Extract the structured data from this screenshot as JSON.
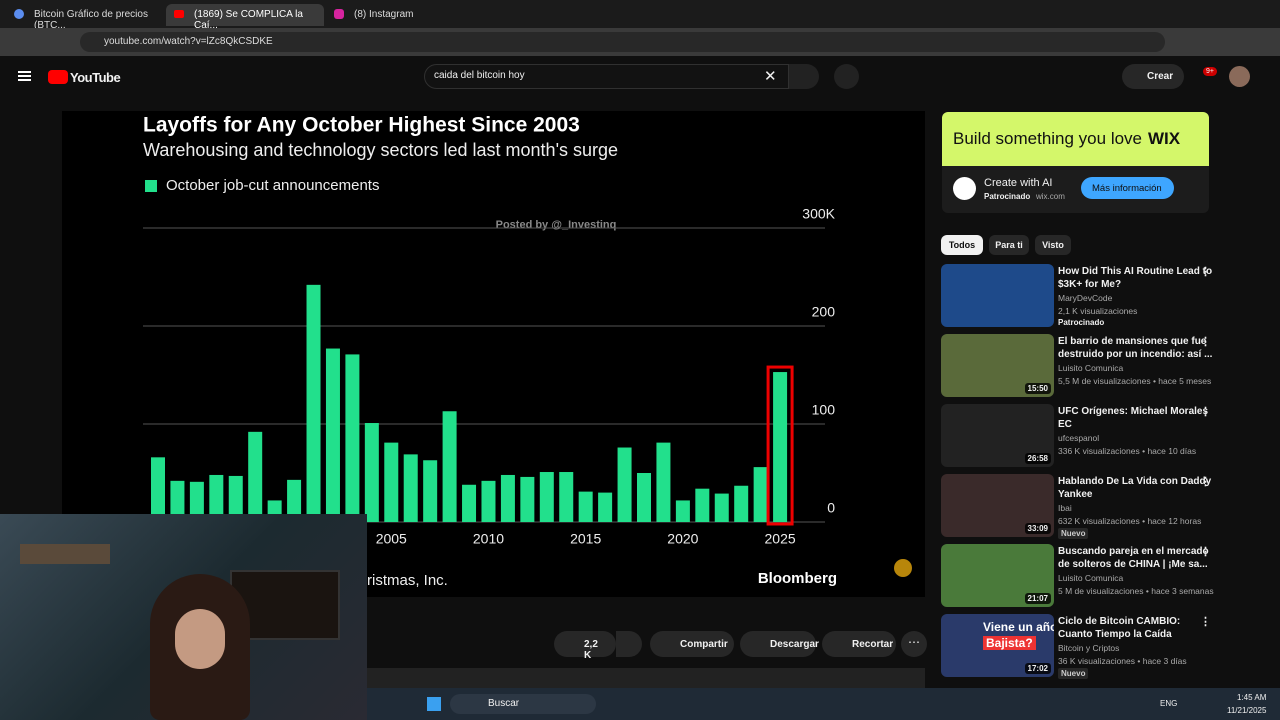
{
  "browser": {
    "tabs": [
      "Bitcoin Gráfico de precios (BTC...",
      "(1869) Se COMPLICA la Caí...",
      "(8) Instagram"
    ],
    "url": "youtube.com/watch?v=lZc8QkCSDKE"
  },
  "header": {
    "logo": "YouTube",
    "search": "caida del bitcoin hoy",
    "create": "Crear",
    "notifications": "9+"
  },
  "video": {
    "chart_data": {
      "type": "bar",
      "title": "Layoffs for Any October Highest Since 2003",
      "subtitle": "Warehousing and technology sectors led last month's surge",
      "categories": [
        null,
        null,
        null,
        null,
        null,
        null,
        null,
        null,
        null,
        null,
        null,
        null,
        "2005",
        null,
        null,
        null,
        null,
        "2010",
        null,
        null,
        null,
        null,
        "2015",
        null,
        null,
        null,
        null,
        "2020",
        null,
        null,
        null,
        null,
        "2025"
      ],
      "series": [
        {
          "name": "October job-cut announcements",
          "color": "#22e08c",
          "values": [
            66,
            42,
            41,
            48,
            47,
            92,
            22,
            43,
            242,
            177,
            171,
            101,
            81,
            69,
            63,
            113,
            38,
            42,
            48,
            46,
            51,
            51,
            31,
            30,
            76,
            50,
            81,
            22,
            34,
            29,
            37,
            56,
            153
          ]
        }
      ],
      "ylim": [
        0,
        300
      ],
      "yticks": [
        0,
        100,
        200,
        {
          "value": 300,
          "label": "300K"
        }
      ],
      "grid": true
    },
    "watermark": "Posted by @_Investinq",
    "source": "ristmas, Inc.",
    "brand": "Bloomberg"
  },
  "actions": {
    "likes": "2,2 K",
    "share": "Compartir",
    "download": "Descargar",
    "clip": "Recortar"
  },
  "ad": {
    "banner": "Build something you love",
    "banner_brand": "WIX",
    "title": "Create with AI",
    "sponsor": "Patrocinado",
    "domain": "wix.com",
    "button": "Más información"
  },
  "filters": [
    "Todos",
    "Para ti",
    "Visto"
  ],
  "videos": [
    {
      "title": [
        "How Did This AI Routine Lead to",
        "$3K+ for Me?"
      ],
      "channel": "MaryDevCode",
      "meta": "2,1 K visualizaciones",
      "badge": "Patrocinado"
    },
    {
      "title": [
        "El barrio de mansiones que fue",
        "destruido por un incendio: así ..."
      ],
      "channel": "Luisito Comunica",
      "meta": "5,5 M de visualizaciones • hace 5 meses",
      "duration": "15:50"
    },
    {
      "title": [
        "UFC Orígenes: Michael Morales",
        "EC"
      ],
      "channel": "ufcespanol",
      "meta": "336 K visualizaciones • hace 10 días",
      "duration": "26:58"
    },
    {
      "title": [
        "Hablando De La Vida con Daddy",
        "Yankee"
      ],
      "channel": "Ibai",
      "meta": "632 K visualizaciones • hace 12 horas",
      "duration": "33:09",
      "badge": "Nuevo"
    },
    {
      "title": [
        "Buscando pareja en el mercado",
        "de solteros de CHINA | ¡Me sa..."
      ],
      "channel": "Luisito Comunica",
      "meta": "5 M de visualizaciones • hace 3 semanas",
      "duration": "21:07"
    },
    {
      "title": [
        "Ciclo de Bitcoin CAMBIO:",
        "Cuanto Tiempo la Caída"
      ],
      "channel": "Bitcoin y Criptos",
      "meta": "36 K visualizaciones • hace 3 días",
      "duration": "17:02",
      "badge": "Nuevo",
      "thumb_text": [
        "Viene un año",
        "Bajista?"
      ]
    }
  ],
  "taskbar": {
    "search": "Buscar",
    "lang": "ENG",
    "time": "1:45 AM",
    "date": "11/21/2025"
  }
}
